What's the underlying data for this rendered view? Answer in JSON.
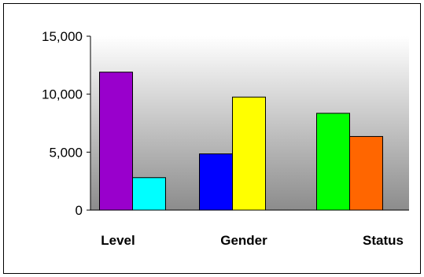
{
  "chart_data": {
    "type": "bar",
    "categories": [
      "Level",
      "Gender",
      "Status"
    ],
    "bars": [
      {
        "category": "Level",
        "value": 11900,
        "color": "#9900cc"
      },
      {
        "category": "Level",
        "value": 2800,
        "color": "#00ffff"
      },
      {
        "category": "Gender",
        "value": 4850,
        "color": "#0000ff"
      },
      {
        "category": "Gender",
        "value": 9750,
        "color": "#ffff00"
      },
      {
        "category": "Status",
        "value": 8350,
        "color": "#00ff00"
      },
      {
        "category": "Status",
        "value": 6350,
        "color": "#ff6600"
      }
    ],
    "y_ticks": [
      "0",
      "5,000",
      "10,000",
      "15,000"
    ],
    "y_tick_values": [
      0,
      5000,
      10000,
      15000
    ],
    "ylim": [
      0,
      15000
    ],
    "grid": false,
    "legend": "none",
    "plot_background": "gradient light-gray to gray",
    "title": "",
    "xlabel": "",
    "ylabel": ""
  }
}
